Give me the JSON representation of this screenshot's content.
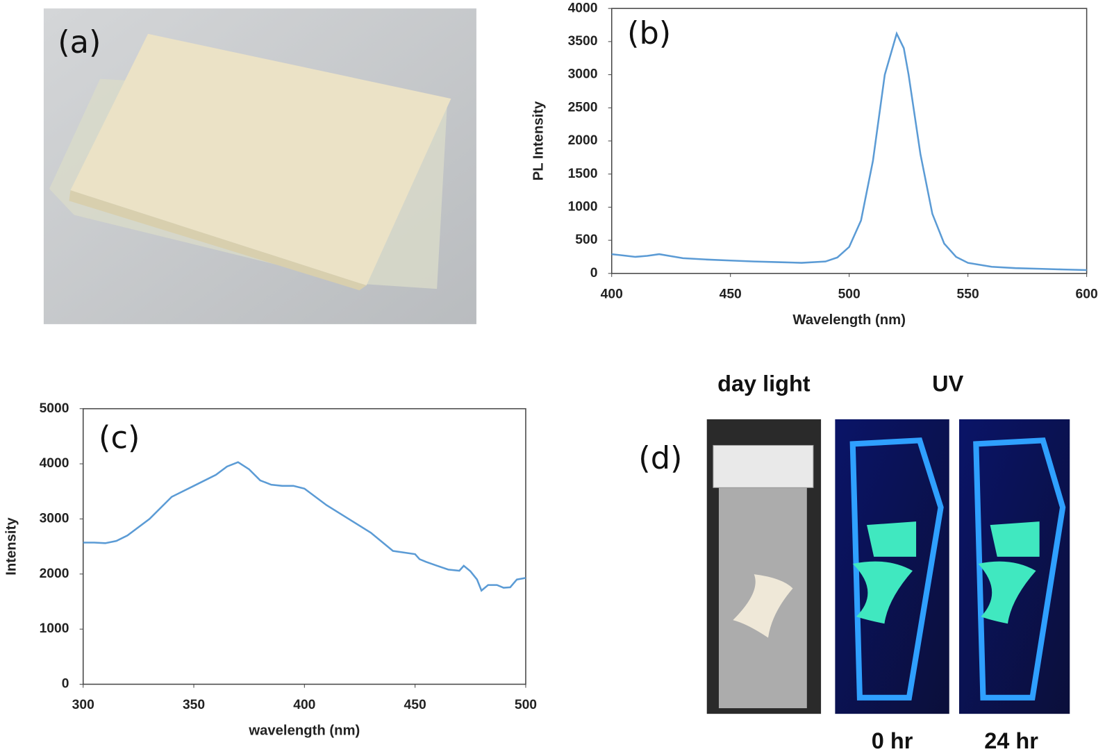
{
  "panels": {
    "a": {
      "label": "(a)"
    },
    "d": {
      "label": "(d)",
      "captions": [
        "day light",
        "UV",
        "0 hr",
        "24 hr"
      ]
    }
  },
  "chart_data": [
    {
      "type": "line",
      "label": "(b)",
      "xlabel": "Wavelength (nm)",
      "ylabel": "PL Intensity",
      "x": [
        400,
        405,
        410,
        415,
        420,
        425,
        430,
        440,
        450,
        460,
        470,
        480,
        490,
        495,
        500,
        505,
        510,
        515,
        520,
        523,
        525,
        530,
        535,
        540,
        545,
        550,
        560,
        570,
        580,
        590,
        600
      ],
      "values": [
        290,
        270,
        250,
        265,
        290,
        260,
        230,
        210,
        195,
        180,
        170,
        160,
        180,
        240,
        400,
        800,
        1700,
        3000,
        3620,
        3400,
        3000,
        1800,
        900,
        450,
        250,
        160,
        100,
        80,
        70,
        60,
        50
      ],
      "color": "#5b9bd5",
      "xlim": [
        400,
        600
      ],
      "ylim": [
        0,
        4000
      ],
      "xticks": [
        400,
        450,
        500,
        550,
        600
      ],
      "yticks": [
        0,
        500,
        1000,
        1500,
        2000,
        2500,
        3000,
        3500,
        4000
      ]
    },
    {
      "type": "line",
      "label": "(c)",
      "xlabel": "wavelength (nm)",
      "ylabel": "Intensity",
      "x": [
        300,
        305,
        310,
        315,
        320,
        330,
        340,
        350,
        360,
        365,
        370,
        375,
        380,
        385,
        390,
        395,
        400,
        410,
        420,
        430,
        440,
        450,
        452,
        455,
        460,
        465,
        470,
        472,
        475,
        478,
        480,
        483,
        487,
        490,
        493,
        496,
        500
      ],
      "values": [
        2570,
        2570,
        2560,
        2600,
        2700,
        3000,
        3400,
        3600,
        3800,
        3950,
        4030,
        3900,
        3700,
        3620,
        3600,
        3600,
        3550,
        3250,
        3000,
        2750,
        2420,
        2360,
        2270,
        2220,
        2150,
        2080,
        2060,
        2150,
        2050,
        1900,
        1700,
        1800,
        1800,
        1750,
        1760,
        1900,
        1930
      ],
      "color": "#5b9bd5",
      "xlim": [
        300,
        500
      ],
      "ylim": [
        0,
        5000
      ],
      "xticks": [
        300,
        350,
        400,
        450,
        500
      ],
      "yticks": [
        0,
        1000,
        2000,
        3000,
        4000,
        5000
      ]
    }
  ]
}
